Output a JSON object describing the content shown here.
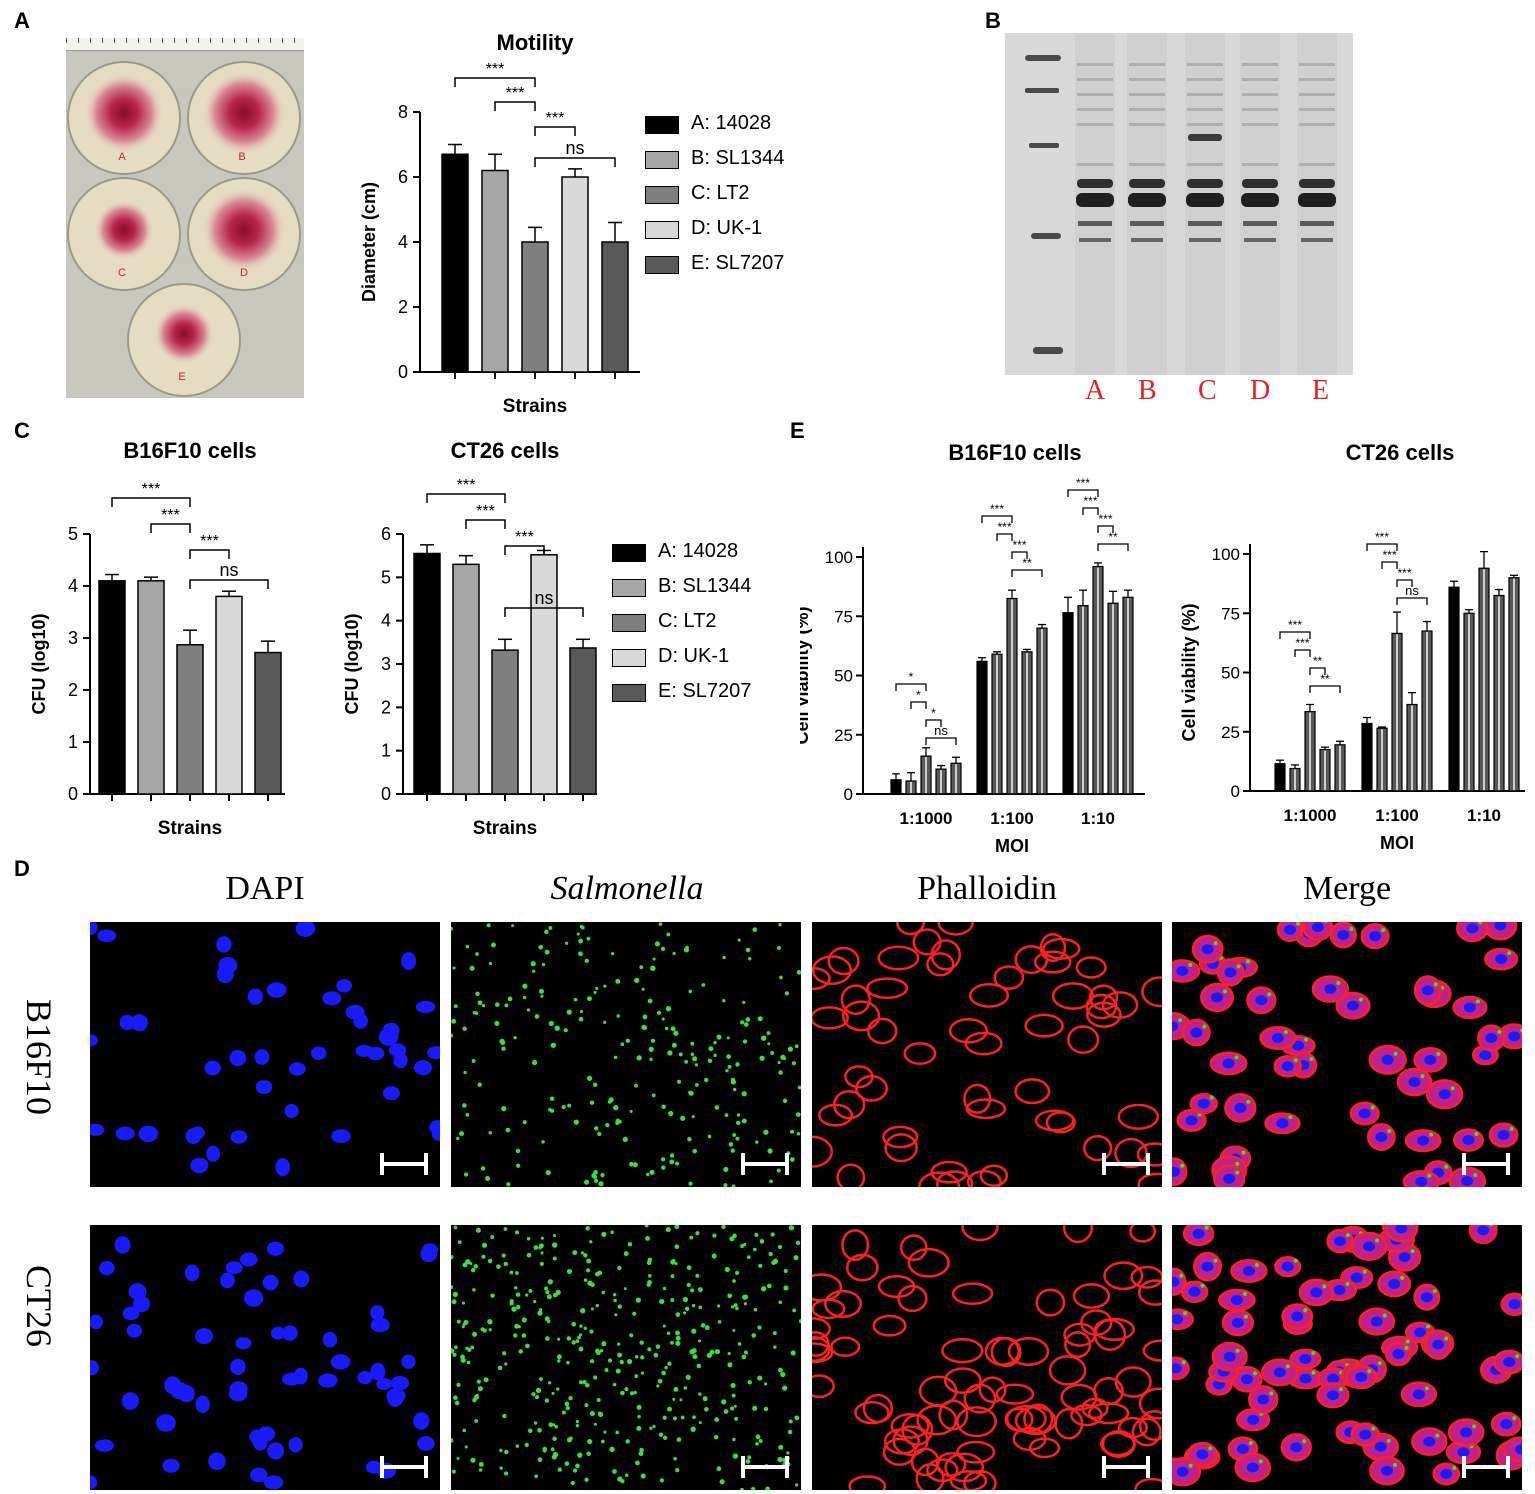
{
  "panels": {
    "A": "A",
    "B": "B",
    "C": "C",
    "D": "D",
    "E": "E"
  },
  "plate_labels": [
    "A",
    "B",
    "C",
    "D",
    "E"
  ],
  "legend_entries": [
    "A: 14028",
    "B: SL1344",
    "C: LT2",
    "D: UK-1",
    "E: SL7207"
  ],
  "legend_colors": [
    "#000000",
    "#a6a6a6",
    "#7f7f7f",
    "#d9d9d9",
    "#595959"
  ],
  "chart_data": [
    {
      "id": "motility",
      "type": "bar",
      "title": "Motility",
      "xlabel": "Strains",
      "ylabel": "Diameter (cm)",
      "ylim": [
        0,
        8
      ],
      "yticks": [
        0,
        2,
        4,
        6,
        8
      ],
      "categories": [
        "A",
        "B",
        "C",
        "D",
        "E"
      ],
      "values": [
        6.7,
        6.2,
        4.0,
        6.0,
        4.0
      ],
      "errors": [
        0.3,
        0.5,
        0.45,
        0.25,
        0.6
      ],
      "significance": [
        {
          "from": 0,
          "to": 2,
          "label": "***"
        },
        {
          "from": 1,
          "to": 2,
          "label": "***"
        },
        {
          "from": 2,
          "to": 3,
          "label": "***"
        },
        {
          "from": 2,
          "to": 4,
          "label": "ns"
        }
      ]
    },
    {
      "id": "cfu-b16f10",
      "type": "bar",
      "title": "B16F10 cells",
      "xlabel": "Strains",
      "ylabel": "CFU (log10)",
      "ylim": [
        0,
        5
      ],
      "yticks": [
        0,
        1,
        2,
        3,
        4,
        5
      ],
      "categories": [
        "A",
        "B",
        "C",
        "D",
        "E"
      ],
      "values": [
        4.1,
        4.1,
        2.87,
        3.8,
        2.72
      ],
      "errors": [
        0.12,
        0.07,
        0.28,
        0.1,
        0.22
      ],
      "significance": [
        {
          "from": 0,
          "to": 2,
          "label": "***"
        },
        {
          "from": 1,
          "to": 2,
          "label": "***"
        },
        {
          "from": 2,
          "to": 3,
          "label": "***"
        },
        {
          "from": 2,
          "to": 4,
          "label": "ns"
        }
      ]
    },
    {
      "id": "cfu-ct26",
      "type": "bar",
      "title": "CT26 cells",
      "xlabel": "Strains",
      "ylabel": "CFU (log10)",
      "ylim": [
        0,
        6
      ],
      "yticks": [
        0,
        1,
        2,
        3,
        4,
        5,
        6
      ],
      "categories": [
        "A",
        "B",
        "C",
        "D",
        "E"
      ],
      "values": [
        5.55,
        5.3,
        3.32,
        5.52,
        3.37
      ],
      "errors": [
        0.2,
        0.2,
        0.25,
        0.1,
        0.2
      ],
      "significance": [
        {
          "from": 0,
          "to": 2,
          "label": "***"
        },
        {
          "from": 1,
          "to": 2,
          "label": "***"
        },
        {
          "from": 2,
          "to": 3,
          "label": "***"
        },
        {
          "from": 2,
          "to": 4,
          "label": "ns"
        }
      ]
    },
    {
      "id": "viability-b16f10",
      "type": "bar",
      "title": "B16F10 cells",
      "xlabel": "MOI",
      "ylabel": "Cell viability (%)",
      "ylim": [
        0,
        100
      ],
      "yticks": [
        0,
        25,
        50,
        75,
        100
      ],
      "categories": [
        "1:1000",
        "1:100",
        "1:10"
      ],
      "series": [
        {
          "values": [
            6,
            56,
            76.5
          ]
        },
        {
          "values": [
            5.5,
            59,
            79.5
          ]
        },
        {
          "values": [
            16,
            82.5,
            96
          ]
        },
        {
          "values": [
            10.5,
            60,
            80.5
          ]
        },
        {
          "values": [
            13,
            70,
            83
          ]
        }
      ],
      "errors": [
        [
          2.5,
          1.5,
          6.5
        ],
        [
          3.5,
          1,
          6.5
        ],
        [
          3.5,
          3.5,
          1.5
        ],
        [
          1.5,
          1,
          5
        ],
        [
          2.5,
          1.5,
          3
        ]
      ],
      "significance": [
        {
          "group": 0,
          "from": 0,
          "to": 2,
          "label": "*"
        },
        {
          "group": 0,
          "from": 1,
          "to": 2,
          "label": "*"
        },
        {
          "group": 0,
          "from": 2,
          "to": 3,
          "label": "*"
        },
        {
          "group": 0,
          "from": 2,
          "to": 4,
          "label": "ns"
        },
        {
          "group": 1,
          "from": 0,
          "to": 2,
          "label": "***"
        },
        {
          "group": 1,
          "from": 1,
          "to": 2,
          "label": "***"
        },
        {
          "group": 1,
          "from": 2,
          "to": 3,
          "label": "***"
        },
        {
          "group": 1,
          "from": 2,
          "to": 4,
          "label": "**"
        },
        {
          "group": 2,
          "from": 0,
          "to": 2,
          "label": "***"
        },
        {
          "group": 2,
          "from": 1,
          "to": 2,
          "label": "***"
        },
        {
          "group": 2,
          "from": 2,
          "to": 3,
          "label": "***"
        },
        {
          "group": 2,
          "from": 2,
          "to": 4,
          "label": "**"
        }
      ]
    },
    {
      "id": "viability-ct26",
      "type": "bar",
      "title": "CT26 cells",
      "xlabel": "MOI",
      "ylabel": "Cell viability (%)",
      "ylim": [
        0,
        100
      ],
      "yticks": [
        0,
        25,
        50,
        75,
        100
      ],
      "categories": [
        "1:1000",
        "1:100",
        "1:10"
      ],
      "series": [
        {
          "values": [
            11.5,
            28.5,
            86
          ]
        },
        {
          "values": [
            9.5,
            26.5,
            75
          ]
        },
        {
          "values": [
            33.5,
            66.5,
            94
          ]
        },
        {
          "values": [
            17.5,
            36.5,
            82.5
          ]
        },
        {
          "values": [
            19.5,
            67.5,
            90
          ]
        }
      ],
      "errors": [
        [
          1.5,
          2.5,
          2.5
        ],
        [
          1.5,
          0.5,
          1.5
        ],
        [
          3,
          9,
          7
        ],
        [
          1,
          5,
          2.5
        ],
        [
          1.5,
          4,
          1
        ]
      ],
      "significance": [
        {
          "group": 0,
          "from": 0,
          "to": 2,
          "label": "***"
        },
        {
          "group": 0,
          "from": 1,
          "to": 2,
          "label": "***"
        },
        {
          "group": 0,
          "from": 2,
          "to": 3,
          "label": "**"
        },
        {
          "group": 0,
          "from": 2,
          "to": 4,
          "label": "**"
        },
        {
          "group": 1,
          "from": 0,
          "to": 2,
          "label": "***"
        },
        {
          "group": 1,
          "from": 1,
          "to": 2,
          "label": "***"
        },
        {
          "group": 1,
          "from": 2,
          "to": 3,
          "label": "***"
        },
        {
          "group": 1,
          "from": 2,
          "to": 4,
          "label": "ns"
        }
      ]
    }
  ],
  "gel": {
    "lane_labels": [
      "A",
      "B",
      "C",
      "D",
      "E"
    ],
    "lane_label_color": "#e8231f"
  },
  "microscopy": {
    "columns": [
      {
        "label": "DAPI",
        "color": "#2222cc",
        "italic": false
      },
      {
        "label": "Salmonella",
        "color": "#3ed43e",
        "italic": true
      },
      {
        "label": "Phalloidin",
        "color": "#e8231f",
        "italic": false
      },
      {
        "label": "Merge",
        "color": "#000000",
        "italic": false
      }
    ],
    "rows": [
      "B16F10",
      "CT26"
    ]
  }
}
